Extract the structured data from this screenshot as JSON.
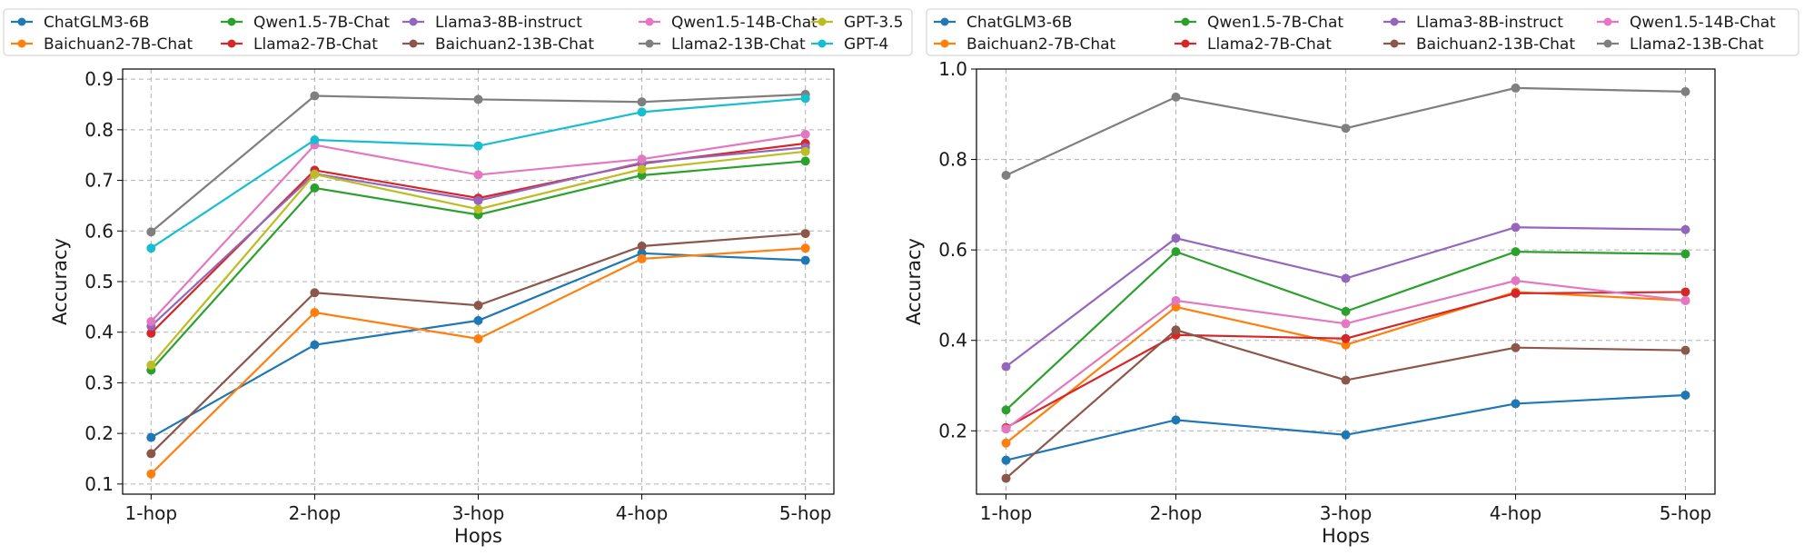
{
  "chart_data": [
    {
      "type": "line",
      "categories": [
        "1-hop",
        "2-hop",
        "3-hop",
        "4-hop",
        "5-hop"
      ],
      "xlabel": "Hops",
      "ylabel": "Accuracy",
      "ylim": [
        0.08,
        0.92
      ],
      "yticks": [
        "0.1",
        "0.2",
        "0.3",
        "0.4",
        "0.5",
        "0.6",
        "0.7",
        "0.8",
        "0.9"
      ],
      "grid": true,
      "legend_position": "top",
      "series": [
        {
          "name": "ChatGLM3-6B",
          "color": "#1f77b4",
          "values": [
            0.192,
            0.375,
            0.423,
            0.556,
            0.542
          ]
        },
        {
          "name": "Baichuan2-7B-Chat",
          "color": "#ff7f0e",
          "values": [
            0.12,
            0.439,
            0.387,
            0.545,
            0.566
          ]
        },
        {
          "name": "Qwen1.5-7B-Chat",
          "color": "#2ca02c",
          "values": [
            0.325,
            0.685,
            0.632,
            0.71,
            0.738
          ]
        },
        {
          "name": "Llama2-7B-Chat",
          "color": "#d62728",
          "values": [
            0.398,
            0.72,
            0.665,
            0.733,
            0.773
          ]
        },
        {
          "name": "Llama3-8B-instruct",
          "color": "#9467bd",
          "values": [
            0.412,
            0.713,
            0.66,
            0.735,
            0.765
          ]
        },
        {
          "name": "Baichuan2-13B-Chat",
          "color": "#8c564b",
          "values": [
            0.16,
            0.478,
            0.453,
            0.57,
            0.595
          ]
        },
        {
          "name": "Qwen1.5-14B-Chat",
          "color": "#e377c2",
          "values": [
            0.421,
            0.77,
            0.711,
            0.742,
            0.791
          ]
        },
        {
          "name": "Llama2-13B-Chat",
          "color": "#7f7f7f",
          "values": [
            0.598,
            0.867,
            0.86,
            0.855,
            0.87
          ]
        },
        {
          "name": "GPT-3.5",
          "color": "#bcbd22",
          "values": [
            0.335,
            0.712,
            0.643,
            0.722,
            0.757
          ]
        },
        {
          "name": "GPT-4",
          "color": "#17becf",
          "values": [
            0.566,
            0.78,
            0.768,
            0.835,
            0.862
          ]
        }
      ]
    },
    {
      "type": "line",
      "categories": [
        "1-hop",
        "2-hop",
        "3-hop",
        "4-hop",
        "5-hop"
      ],
      "xlabel": "Hops",
      "ylabel": "Accuracy",
      "ylim": [
        0.06,
        1.0
      ],
      "yticks": [
        "0.2",
        "0.4",
        "0.6",
        "0.8",
        "1.0"
      ],
      "grid": true,
      "legend_position": "top",
      "series": [
        {
          "name": "ChatGLM3-6B",
          "color": "#1f77b4",
          "values": [
            0.135,
            0.224,
            0.191,
            0.26,
            0.279
          ]
        },
        {
          "name": "Baichuan2-7B-Chat",
          "color": "#ff7f0e",
          "values": [
            0.173,
            0.474,
            0.39,
            0.507,
            0.488
          ]
        },
        {
          "name": "Qwen1.5-7B-Chat",
          "color": "#2ca02c",
          "values": [
            0.246,
            0.596,
            0.464,
            0.596,
            0.591
          ]
        },
        {
          "name": "Llama2-7B-Chat",
          "color": "#d62728",
          "values": [
            0.207,
            0.412,
            0.404,
            0.504,
            0.507
          ]
        },
        {
          "name": "Llama3-8B-instruct",
          "color": "#9467bd",
          "values": [
            0.342,
            0.626,
            0.537,
            0.65,
            0.645
          ]
        },
        {
          "name": "Baichuan2-13B-Chat",
          "color": "#8c564b",
          "values": [
            0.095,
            0.423,
            0.312,
            0.384,
            0.378
          ]
        },
        {
          "name": "Qwen1.5-14B-Chat",
          "color": "#e377c2",
          "values": [
            0.204,
            0.488,
            0.437,
            0.532,
            0.488
          ]
        },
        {
          "name": "Llama2-13B-Chat",
          "color": "#7f7f7f",
          "values": [
            0.765,
            0.938,
            0.869,
            0.958,
            0.95
          ]
        }
      ]
    }
  ]
}
